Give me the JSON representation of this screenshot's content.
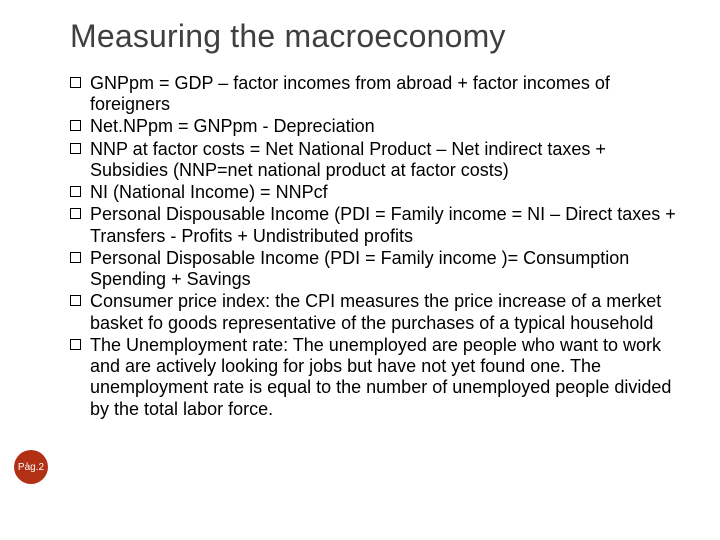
{
  "title": "Measuring the macroeconomy",
  "title_fontsize": 32,
  "title_color": "#3f3f3f",
  "body_fontsize": 18,
  "body_color": "#000000",
  "background_color": "#ffffff",
  "bullet_marker": "checkbox",
  "bullets": [
    "GNPpm = GDP – factor incomes from abroad + factor incomes of foreigners",
    "Net.NPpm = GNPpm - Depreciation",
    "NNP at factor costs = Net National Product – Net indirect taxes + Subsidies  (NNP=net national product at factor costs)",
    "NI (National Income) = NNPcf",
    "Personal Dispousable Income (PDI = Family income = NI – Direct taxes + Transfers - Profits + Undistributed profits",
    "Personal Disposable Income (PDI = Family income )= Consumption Spending + Savings",
    "Consumer price index: the CPI measures the price increase of a merket basket fo goods representative of the purchases of a typical household",
    "The Unemployment rate: The unemployed are people who want to work and are actively looking for jobs but have not yet found one. The unemployment rate is equal to the number of unemployed people divided by the total labor force."
  ],
  "page_badge": {
    "label": "Pàg.2",
    "background": "#b23114",
    "text_color": "#ffffff"
  }
}
